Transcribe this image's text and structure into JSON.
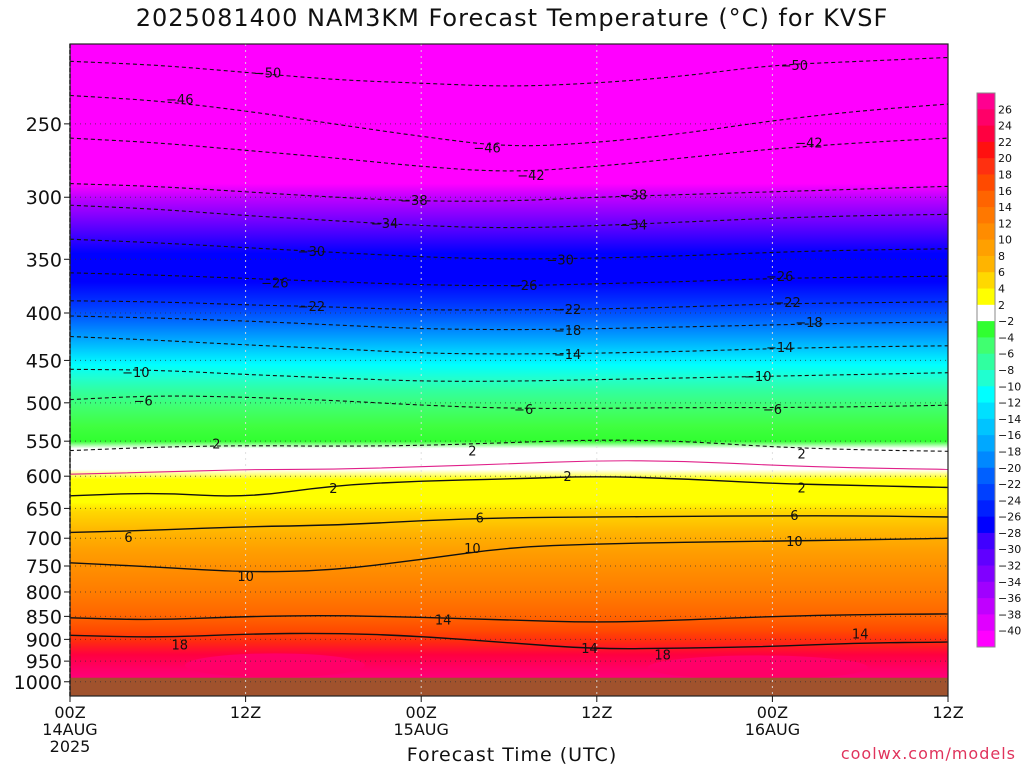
{
  "chart_data": {
    "type": "heatmap",
    "title": "2025081400 NAM3KM Forecast Temperature (°C) for KVSF",
    "xlabel": "Forecast Time (UTC)",
    "ylabel": "",
    "credit": "coolwx.com/models",
    "y_axis": {
      "scale": "log",
      "range": [
        1036,
        205
      ],
      "ticks": [
        250,
        300,
        350,
        400,
        450,
        500,
        550,
        600,
        650,
        700,
        750,
        800,
        850,
        900,
        950,
        1000
      ]
    },
    "x_axis": {
      "range_hours": [
        0,
        60
      ],
      "ticks": [
        {
          "hour": 0,
          "label": "00Z",
          "sub": "14AUG",
          "sub2": "2025"
        },
        {
          "hour": 12,
          "label": "12Z",
          "sub": "",
          "sub2": ""
        },
        {
          "hour": 24,
          "label": "00Z",
          "sub": "15AUG",
          "sub2": ""
        },
        {
          "hour": 36,
          "label": "12Z",
          "sub": "",
          "sub2": ""
        },
        {
          "hour": 48,
          "label": "00Z",
          "sub": "16AUG",
          "sub2": ""
        },
        {
          "hour": 60,
          "label": "12Z",
          "sub": "",
          "sub2": ""
        }
      ]
    },
    "grid": true,
    "ground_level_hpa": 990,
    "colorbar": {
      "placement": "right",
      "labels": [
        "26",
        "24",
        "22",
        "20",
        "18",
        "16",
        "14",
        "12",
        "10",
        "8",
        "6",
        "4",
        "2",
        "-2",
        "-4",
        "-6",
        "-8",
        "-10",
        "-12",
        "-14",
        "-16",
        "-18",
        "-20",
        "-22",
        "-24",
        "-26",
        "-28",
        "-30",
        "-32",
        "-34",
        "-36",
        "-38",
        "-40"
      ],
      "colors": [
        "#ff0090",
        "#ff0068",
        "#ff0040",
        "#ff1010",
        "#ff3010",
        "#ff4a00",
        "#ff6400",
        "#ff7800",
        "#ff8c00",
        "#ffa000",
        "#ffb400",
        "#ffd800",
        "#ffff00",
        "#ffffff",
        "#30ff30",
        "#40ff70",
        "#30ffa0",
        "#20ffd0",
        "#00ffff",
        "#00e0ff",
        "#00c4ff",
        "#00a8ff",
        "#0088ff",
        "#0060ff",
        "#0040ff",
        "#0020ff",
        "#0000ff",
        "#4000ff",
        "#6000ff",
        "#8000ff",
        "#a000ff",
        "#c000ff",
        "#e000ff",
        "#ff00ff"
      ]
    },
    "contours": [
      {
        "value": 18,
        "label": "18",
        "style": "solid",
        "label_points": [
          [
            7.5,
            911
          ],
          [
            40.5,
            935
          ]
        ],
        "series": [
          [
            0,
            891
          ],
          [
            6,
            896
          ],
          [
            12,
            888
          ],
          [
            18,
            886
          ],
          [
            24,
            893
          ],
          [
            30,
            908
          ],
          [
            36,
            922
          ],
          [
            42,
            920
          ],
          [
            48,
            916
          ],
          [
            54,
            908
          ],
          [
            60,
            906
          ]
        ]
      },
      {
        "value": 14,
        "label": "14",
        "style": "solid",
        "label_points": [
          [
            25.5,
            857
          ],
          [
            35.5,
            920
          ],
          [
            54,
            887
          ]
        ],
        "series": [
          [
            0,
            853
          ],
          [
            6,
            858
          ],
          [
            12,
            850
          ],
          [
            18,
            848
          ],
          [
            24,
            852
          ],
          [
            30,
            858
          ],
          [
            36,
            863
          ],
          [
            42,
            858
          ],
          [
            48,
            850
          ],
          [
            54,
            846
          ],
          [
            60,
            845
          ]
        ]
      },
      {
        "value": 10,
        "label": "10",
        "style": "solid",
        "label_points": [
          [
            12,
            769
          ],
          [
            27.5,
            717
          ],
          [
            49.5,
            705
          ]
        ],
        "series": [
          [
            0,
            744
          ],
          [
            6,
            752
          ],
          [
            12,
            762
          ],
          [
            18,
            758
          ],
          [
            24,
            738
          ],
          [
            30,
            716
          ],
          [
            36,
            710
          ],
          [
            42,
            707
          ],
          [
            48,
            705
          ],
          [
            54,
            703
          ],
          [
            60,
            700
          ]
        ]
      },
      {
        "value": 6,
        "label": "6",
        "style": "solid",
        "label_points": [
          [
            4,
            698
          ],
          [
            28,
            665
          ],
          [
            49.5,
            661
          ]
        ],
        "series": [
          [
            0,
            690
          ],
          [
            6,
            686
          ],
          [
            12,
            680
          ],
          [
            18,
            678
          ],
          [
            24,
            670
          ],
          [
            30,
            665
          ],
          [
            36,
            664
          ],
          [
            42,
            663
          ],
          [
            48,
            662
          ],
          [
            54,
            662
          ],
          [
            60,
            664
          ]
        ]
      },
      {
        "value": 2,
        "label": "2",
        "style": "solid",
        "label_points": [
          [
            18,
            618
          ],
          [
            34,
            600
          ],
          [
            50,
            617
          ]
        ],
        "series": [
          [
            0,
            630
          ],
          [
            6,
            625
          ],
          [
            12,
            633
          ],
          [
            18,
            614
          ],
          [
            24,
            607
          ],
          [
            30,
            604
          ],
          [
            36,
            600
          ],
          [
            42,
            604
          ],
          [
            48,
            611
          ],
          [
            54,
            614
          ],
          [
            60,
            617
          ]
        ]
      },
      {
        "value": 0,
        "label": "",
        "style": "pink",
        "label_points": [],
        "series": [
          [
            0,
            597
          ],
          [
            6,
            594
          ],
          [
            12,
            590
          ],
          [
            18,
            590
          ],
          [
            24,
            586
          ],
          [
            30,
            582
          ],
          [
            36,
            577
          ],
          [
            42,
            578
          ],
          [
            48,
            584
          ],
          [
            54,
            588
          ],
          [
            60,
            590
          ]
        ]
      },
      {
        "value": 2,
        "label": "2",
        "style": "dashed",
        "label_points": [
          [
            10,
            553
          ],
          [
            27.5,
            563
          ],
          [
            50,
            567
          ]
        ],
        "series": [
          [
            0,
            563
          ],
          [
            6,
            558
          ],
          [
            12,
            556
          ],
          [
            18,
            557
          ],
          [
            24,
            556
          ],
          [
            30,
            552
          ],
          [
            36,
            548
          ],
          [
            42,
            550
          ],
          [
            48,
            558
          ],
          [
            54,
            562
          ],
          [
            60,
            564
          ]
        ]
      },
      {
        "value": -6,
        "label": "-6",
        "style": "dashed",
        "label_points": [
          [
            5,
            497
          ],
          [
            31,
            508
          ],
          [
            48,
            508
          ]
        ],
        "series": [
          [
            0,
            496
          ],
          [
            6,
            491
          ],
          [
            12,
            493
          ],
          [
            18,
            497
          ],
          [
            24,
            503
          ],
          [
            30,
            507
          ],
          [
            36,
            507
          ],
          [
            42,
            506
          ],
          [
            48,
            506
          ],
          [
            54,
            505
          ],
          [
            60,
            503
          ]
        ]
      },
      {
        "value": -10,
        "label": "-10",
        "style": "dashed",
        "label_points": [
          [
            4.5,
            463
          ],
          [
            47,
            468
          ]
        ],
        "series": [
          [
            0,
            460
          ],
          [
            6,
            461
          ],
          [
            12,
            466
          ],
          [
            18,
            470
          ],
          [
            24,
            474
          ],
          [
            30,
            474
          ],
          [
            36,
            472
          ],
          [
            42,
            470
          ],
          [
            48,
            468
          ],
          [
            54,
            466
          ],
          [
            60,
            464
          ]
        ]
      },
      {
        "value": -14,
        "label": "-14",
        "style": "dashed",
        "label_points": [
          [
            34,
            443
          ],
          [
            48.5,
            435
          ]
        ],
        "series": [
          [
            0,
            424
          ],
          [
            6,
            428
          ],
          [
            12,
            433
          ],
          [
            18,
            437
          ],
          [
            24,
            442
          ],
          [
            30,
            443
          ],
          [
            36,
            442
          ],
          [
            42,
            440
          ],
          [
            48,
            437
          ],
          [
            54,
            435
          ],
          [
            60,
            434
          ]
        ]
      },
      {
        "value": -18,
        "label": "-18",
        "style": "dashed",
        "label_points": [
          [
            34,
            417
          ],
          [
            50.5,
            409
          ]
        ],
        "series": [
          [
            0,
            403
          ],
          [
            6,
            405
          ],
          [
            12,
            408
          ],
          [
            18,
            412
          ],
          [
            24,
            416
          ],
          [
            30,
            417
          ],
          [
            36,
            416
          ],
          [
            42,
            414
          ],
          [
            48,
            412
          ],
          [
            54,
            410
          ],
          [
            60,
            409
          ]
        ]
      },
      {
        "value": -22,
        "label": "-22",
        "style": "dashed",
        "label_points": [
          [
            16.5,
            393
          ],
          [
            34,
            396
          ],
          [
            49,
            389
          ]
        ],
        "series": [
          [
            0,
            388
          ],
          [
            6,
            389
          ],
          [
            12,
            392
          ],
          [
            18,
            394
          ],
          [
            24,
            397
          ],
          [
            30,
            397
          ],
          [
            36,
            396
          ],
          [
            42,
            394
          ],
          [
            48,
            391
          ],
          [
            54,
            390
          ],
          [
            60,
            389
          ]
        ]
      },
      {
        "value": -26,
        "label": "-26",
        "style": "dashed",
        "label_points": [
          [
            14,
            371
          ],
          [
            31,
            373
          ],
          [
            48.5,
            365
          ]
        ],
        "series": [
          [
            0,
            362
          ],
          [
            6,
            364
          ],
          [
            12,
            367
          ],
          [
            18,
            370
          ],
          [
            24,
            373
          ],
          [
            30,
            374
          ],
          [
            36,
            372
          ],
          [
            42,
            370
          ],
          [
            48,
            367
          ],
          [
            54,
            366
          ],
          [
            60,
            365
          ]
        ]
      },
      {
        "value": -30,
        "label": "-30",
        "style": "dashed",
        "label_points": [
          [
            16.5,
            343
          ],
          [
            33.5,
            350
          ]
        ],
        "series": [
          [
            0,
            333
          ],
          [
            6,
            336
          ],
          [
            12,
            340
          ],
          [
            18,
            344
          ],
          [
            24,
            348
          ],
          [
            30,
            350
          ],
          [
            36,
            349
          ],
          [
            42,
            347
          ],
          [
            48,
            344
          ],
          [
            54,
            342
          ],
          [
            60,
            341
          ]
        ]
      },
      {
        "value": -34,
        "label": "-34",
        "style": "dashed",
        "label_points": [
          [
            21.5,
            320
          ],
          [
            38.5,
            321
          ]
        ],
        "series": [
          [
            0,
            306
          ],
          [
            6,
            309
          ],
          [
            12,
            314
          ],
          [
            18,
            318
          ],
          [
            24,
            322
          ],
          [
            30,
            324
          ],
          [
            36,
            322
          ],
          [
            42,
            319
          ],
          [
            48,
            316
          ],
          [
            54,
            314
          ],
          [
            60,
            313
          ]
        ]
      },
      {
        "value": -38,
        "label": "-38",
        "style": "dashed",
        "label_points": [
          [
            23.5,
            302
          ],
          [
            38.5,
            298
          ]
        ],
        "series": [
          [
            0,
            290
          ],
          [
            6,
            292
          ],
          [
            12,
            296
          ],
          [
            18,
            300
          ],
          [
            24,
            303
          ],
          [
            30,
            303
          ],
          [
            36,
            300
          ],
          [
            42,
            298
          ],
          [
            48,
            296
          ],
          [
            54,
            294
          ],
          [
            60,
            292
          ]
        ]
      },
      {
        "value": -42,
        "label": "-42",
        "style": "dashed",
        "label_points": [
          [
            31.5,
            284
          ],
          [
            50.5,
            262
          ]
        ],
        "series": [
          [
            0,
            259
          ],
          [
            6,
            262
          ],
          [
            12,
            267
          ],
          [
            18,
            272
          ],
          [
            24,
            278
          ],
          [
            30,
            282
          ],
          [
            36,
            278
          ],
          [
            42,
            272
          ],
          [
            48,
            266
          ],
          [
            54,
            262
          ],
          [
            60,
            259
          ]
        ]
      },
      {
        "value": -46,
        "label": "-46",
        "style": "dashed",
        "label_points": [
          [
            7.5,
            235
          ],
          [
            28.5,
            265
          ]
        ],
        "series": [
          [
            0,
            233
          ],
          [
            6,
            236
          ],
          [
            12,
            242
          ],
          [
            18,
            250
          ],
          [
            24,
            258
          ],
          [
            30,
            265
          ],
          [
            36,
            262
          ],
          [
            42,
            256
          ],
          [
            48,
            248
          ],
          [
            54,
            242
          ],
          [
            60,
            238
          ]
        ]
      },
      {
        "value": -50,
        "label": "-50",
        "style": "dashed",
        "label_points": [
          [
            13.5,
            220
          ],
          [
            49.5,
            216
          ]
        ],
        "series": [
          [
            0,
            214
          ],
          [
            6,
            216
          ],
          [
            12,
            220
          ],
          [
            18,
            224
          ],
          [
            24,
            226
          ],
          [
            30,
            228
          ],
          [
            36,
            226
          ],
          [
            42,
            222
          ],
          [
            48,
            216
          ],
          [
            54,
            214
          ],
          [
            60,
            212
          ]
        ]
      }
    ]
  }
}
